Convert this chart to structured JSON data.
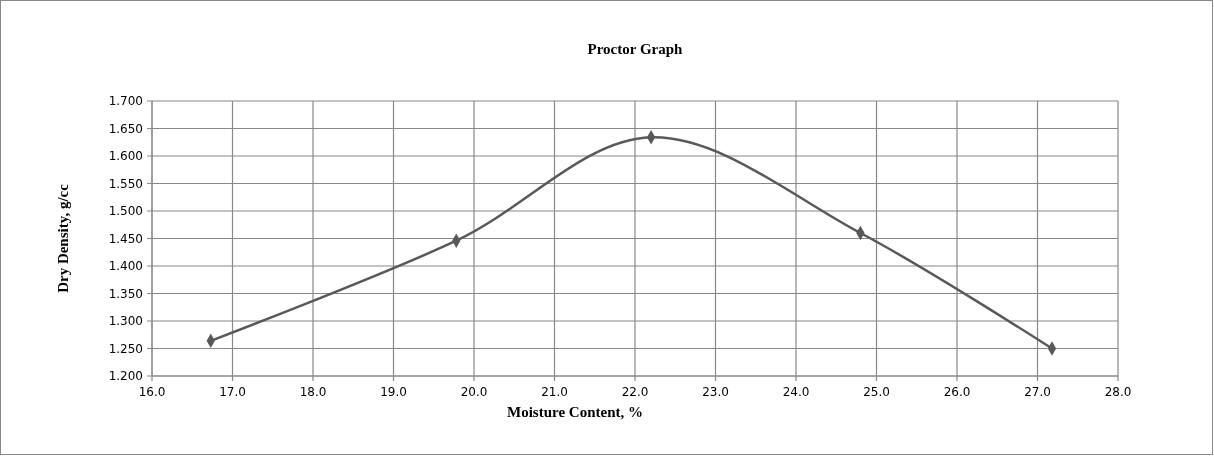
{
  "chart_data": {
    "type": "line",
    "title": "Proctor Graph",
    "xlabel": "Moisture Content, %",
    "ylabel": "Dry Density, g/cc",
    "x": [
      16.73,
      19.78,
      22.2,
      24.8,
      27.18
    ],
    "series": [
      {
        "color": "#595959",
        "values": [
          1.264,
          1.446,
          1.634,
          1.46,
          1.25
        ]
      }
    ],
    "xlim": [
      16,
      28
    ],
    "xticks": [
      {
        "value": 16,
        "label": "16.0"
      },
      {
        "value": 17,
        "label": "17.0"
      },
      {
        "value": 18,
        "label": "18.0"
      },
      {
        "value": 19,
        "label": "19.0"
      },
      {
        "value": 20,
        "label": "20.0"
      },
      {
        "value": 21,
        "label": "21.0"
      },
      {
        "value": 22,
        "label": "22.0"
      },
      {
        "value": 23,
        "label": "23.0"
      },
      {
        "value": 24,
        "label": "24.0"
      },
      {
        "value": 25,
        "label": "25.0"
      },
      {
        "value": 26,
        "label": "26.0"
      },
      {
        "value": 27,
        "label": "27.0"
      },
      {
        "value": 28,
        "label": "28.0"
      }
    ],
    "ylim": [
      1.2,
      1.7
    ],
    "yticks": [
      {
        "value": 1.2,
        "label": "1.200"
      },
      {
        "value": 1.25,
        "label": "1.250"
      },
      {
        "value": 1.3,
        "label": "1.300"
      },
      {
        "value": 1.35,
        "label": "1.350"
      },
      {
        "value": 1.4,
        "label": "1.400"
      },
      {
        "value": 1.45,
        "label": "1.450"
      },
      {
        "value": 1.5,
        "label": "1.500"
      },
      {
        "value": 1.55,
        "label": "1.550"
      },
      {
        "value": 1.6,
        "label": "1.600"
      },
      {
        "value": 1.65,
        "label": "1.650"
      },
      {
        "value": 1.7,
        "label": "1.700"
      }
    ],
    "grid": true,
    "marker": "diamond",
    "line_style": "solid"
  }
}
